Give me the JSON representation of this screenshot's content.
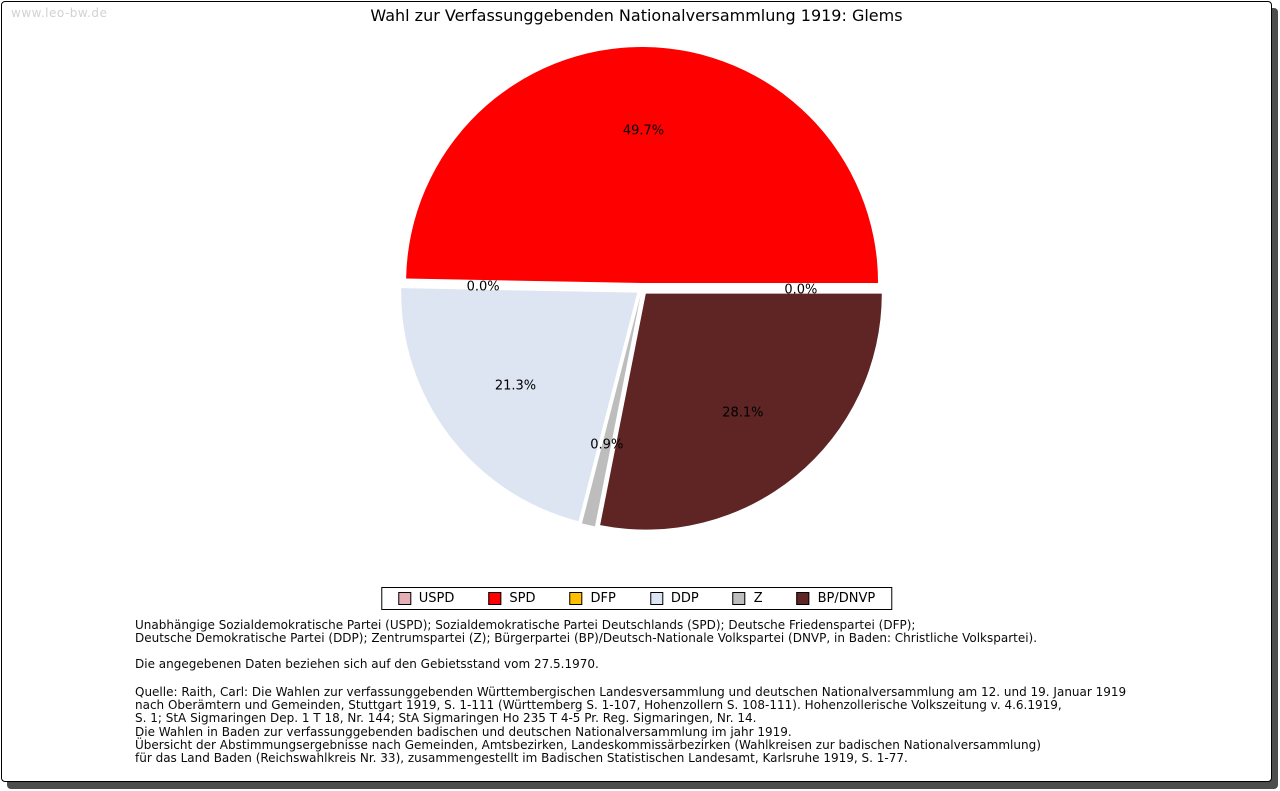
{
  "page": {
    "watermark": "www.leo-bw.de",
    "title": "Wahl zur Verfassunggebenden Nationalversammlung 1919: Glems"
  },
  "chart_data": {
    "type": "pie",
    "title": "Wahl zur Verfassunggebenden Nationalversammlung 1919: Glems",
    "unit": "%",
    "start_angle_deg": 0,
    "direction": "counterclockwise",
    "explode": true,
    "legend_position": "bottom",
    "slices": [
      {
        "label": "USPD",
        "value": 0.0,
        "color": "#e3aeb5"
      },
      {
        "label": "SPD",
        "value": 49.7,
        "color": "#fe0000"
      },
      {
        "label": "DFP",
        "value": 0.0,
        "color": "#ffc003"
      },
      {
        "label": "DDP",
        "value": 21.3,
        "color": "#dce5f1"
      },
      {
        "label": "Z",
        "value": 0.9,
        "color": "#bdbdbd"
      },
      {
        "label": "BP/DNVP",
        "value": 28.1,
        "color": "#5f2525"
      }
    ]
  },
  "footnotes": {
    "parties": [
      "Unabhängige Sozialdemokratische Partei (USPD); Sozialdemokratische Partei Deutschlands (SPD); Deutsche Friedenspartei (DFP);",
      "Deutsche Demokratische Partei (DDP); Zentrumspartei (Z); Bürgerpartei (BP)/Deutsch-Nationale Volkspartei (DNVP, in Baden: Christliche Volkspartei)."
    ],
    "note": "Die angegebenen Daten beziehen sich auf den Gebietsstand vom 27.5.1970.",
    "source": [
      "Quelle: Raith, Carl: Die Wahlen zur verfassunggebenden Württembergischen Landesversammlung und deutschen Nationalversammlung am 12. und 19. Januar 1919",
      "nach Oberämtern und Gemeinden, Stuttgart 1919, S. 1-111 (Württemberg S. 1-107, Hohenzollern S. 108-111). Hohenzollerische Volkszeitung v. 4.6.1919,",
      "S. 1; StA Sigmaringen Dep. 1 T 18, Nr. 144; StA Sigmaringen Ho 235 T 4-5 Pr. Reg. Sigmaringen, Nr. 14.",
      "Die Wahlen in Baden zur verfassunggebenden badischen und deutschen Nationalversammlung im jahr 1919.",
      "Übersicht der Abstimmungsergebnisse nach Gemeinden, Amtsbezirken, Landeskommissärbezirken (Wahlkreisen zur badischen Nationalversammlung)",
      "für das Land Baden (Reichswahlkreis Nr. 33), zusammengestellt im Badischen Statistischen Landesamt, Karlsruhe 1919, S. 1-77."
    ]
  }
}
